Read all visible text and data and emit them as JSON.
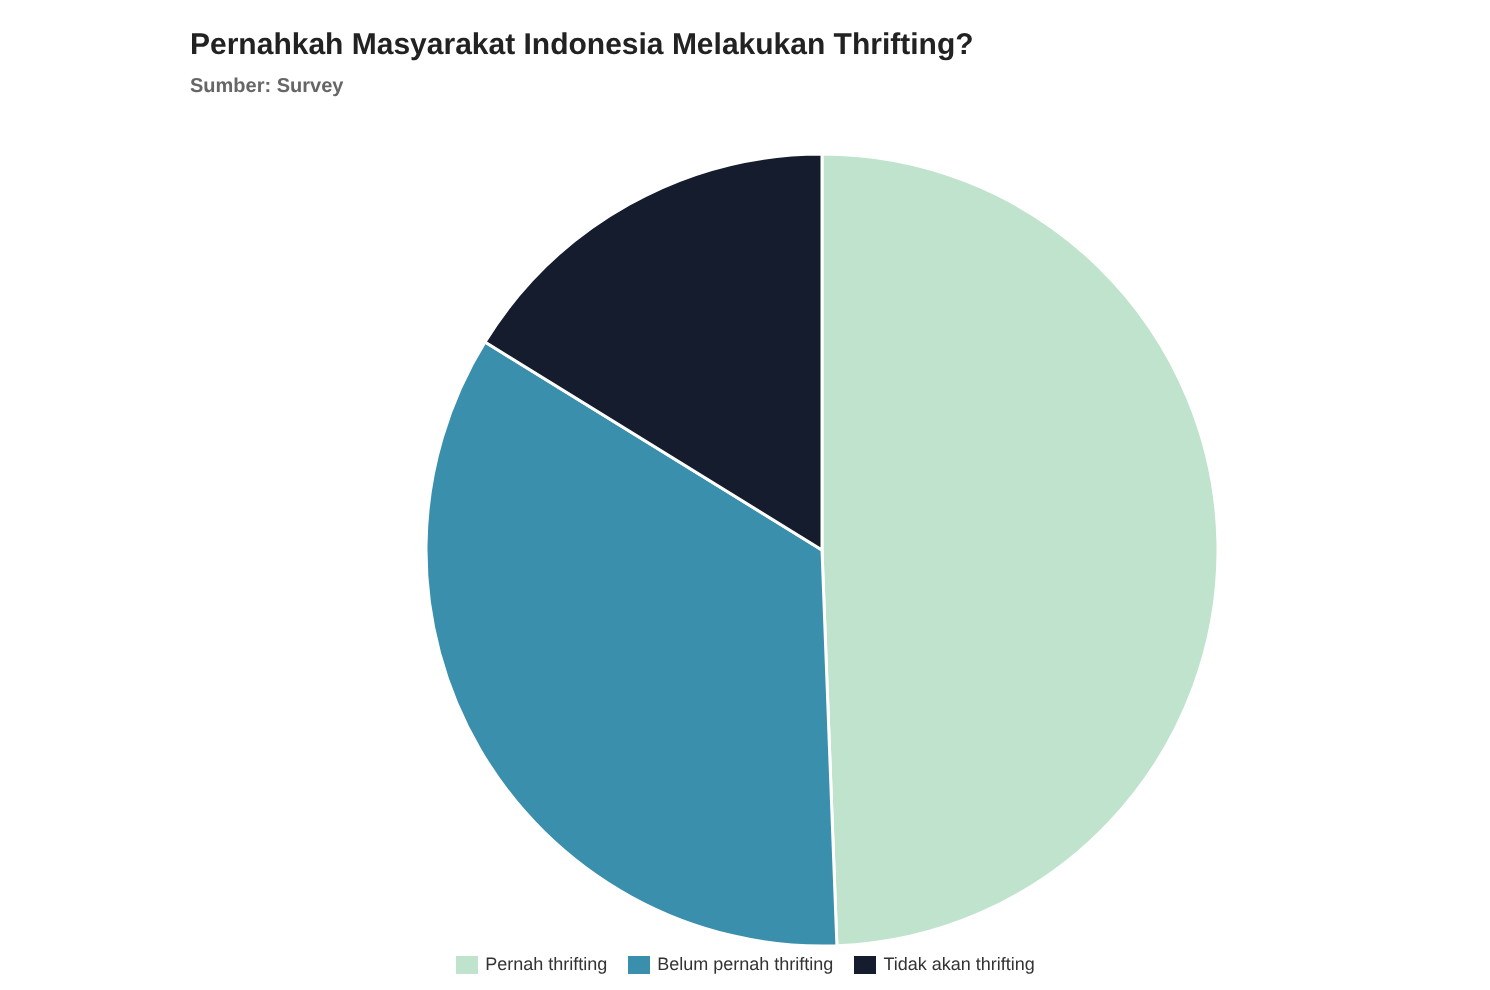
{
  "chart_data": {
    "type": "pie",
    "title": "Pernahkah Masyarakat Indonesia Melakukan Thrifting?",
    "subtitle": "Sumber: Survey",
    "categories": [
      "Pernah thrifting",
      "Belum pernah thrifting",
      "Tidak akan thrifting"
    ],
    "values": [
      49.4,
      34.4,
      16.2
    ],
    "colors": [
      "#bfe3cc",
      "#3a8fad",
      "#141c2d"
    ],
    "legend": "bottom"
  }
}
